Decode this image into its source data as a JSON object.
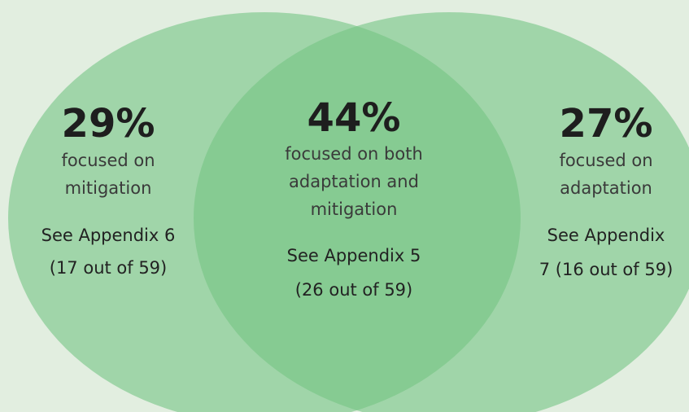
{
  "regions": [
    {
      "percent": "29%",
      "description": [
        "focused on",
        "mitigation"
      ],
      "appendix": [
        "See Appendix 6",
        "(17 out of 59)"
      ]
    },
    {
      "percent": "44%",
      "description": [
        "focused on both",
        "adaptation and",
        "mitigation"
      ],
      "appendix": [
        "See Appendix 5",
        "(26 out of 59)"
      ]
    },
    {
      "percent": "27%",
      "description": [
        "focused on",
        "adaptation"
      ],
      "appendix": [
        "See Appendix",
        "7 (16 out of 59)"
      ]
    }
  ]
}
